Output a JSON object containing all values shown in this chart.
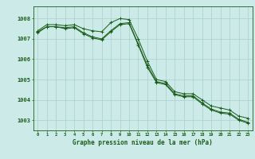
{
  "title": "Graphe pression niveau de la mer (hPa)",
  "background_color": "#cceae7",
  "plot_bg_color": "#cceae7",
  "grid_color": "#aacfcc",
  "line_color": "#1a5c1a",
  "x_ticks": [
    0,
    1,
    2,
    3,
    4,
    5,
    6,
    7,
    8,
    9,
    10,
    11,
    12,
    13,
    14,
    15,
    16,
    17,
    18,
    19,
    20,
    21,
    22,
    23
  ],
  "xlim": [
    -0.5,
    23.5
  ],
  "ylim": [
    1002.5,
    1008.6
  ],
  "yticks": [
    1003,
    1004,
    1005,
    1006,
    1007,
    1008
  ],
  "series1": [
    1007.4,
    1007.7,
    1007.7,
    1007.65,
    1007.7,
    1007.5,
    1007.4,
    1007.35,
    1007.8,
    1008.0,
    1007.95,
    1007.0,
    1005.9,
    1005.0,
    1004.9,
    1004.4,
    1004.3,
    1004.3,
    1004.0,
    1003.7,
    1003.6,
    1003.5,
    1003.2,
    1003.1
  ],
  "series2": [
    1007.3,
    1007.6,
    1007.6,
    1007.55,
    1007.6,
    1007.3,
    1007.1,
    1007.0,
    1007.4,
    1007.75,
    1007.8,
    1006.75,
    1005.7,
    1004.9,
    1004.8,
    1004.3,
    1004.2,
    1004.2,
    1003.85,
    1003.55,
    1003.4,
    1003.35,
    1003.05,
    1002.9
  ],
  "series3": [
    1007.35,
    1007.6,
    1007.6,
    1007.5,
    1007.55,
    1007.25,
    1007.05,
    1006.95,
    1007.35,
    1007.7,
    1007.75,
    1006.7,
    1005.6,
    1004.85,
    1004.75,
    1004.25,
    1004.15,
    1004.15,
    1003.8,
    1003.5,
    1003.35,
    1003.3,
    1003.0,
    1002.85
  ]
}
